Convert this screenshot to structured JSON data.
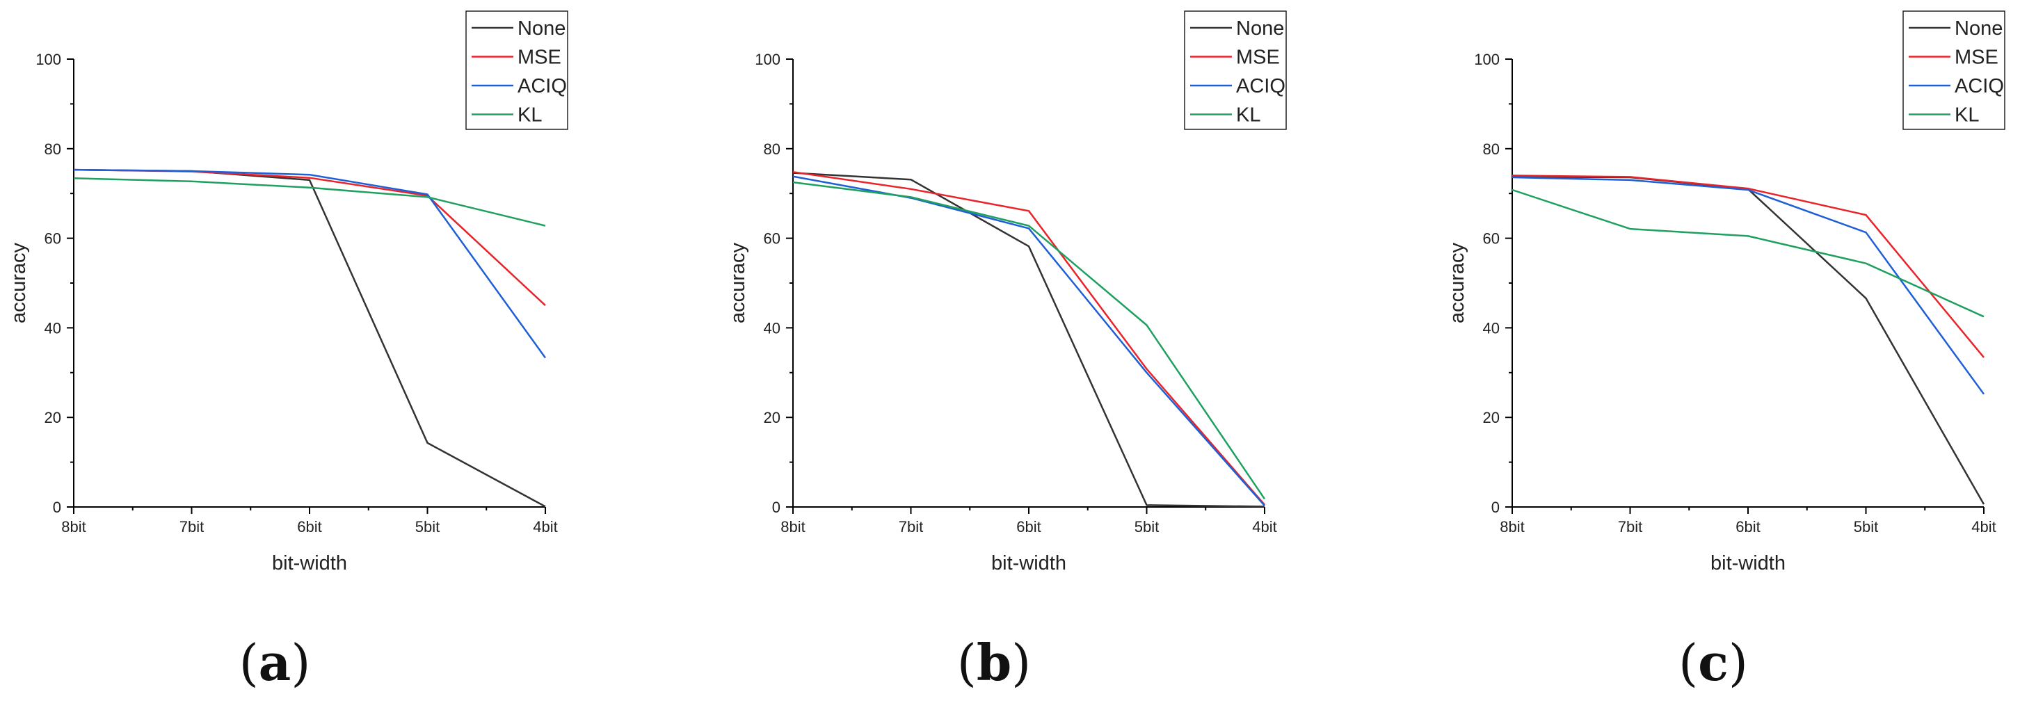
{
  "colors": {
    "None": "#333333",
    "MSE": "#e8242a",
    "ACIQ": "#1f5fd6",
    "KL": "#1fa060",
    "axis": "#000000"
  },
  "chart_data": [
    {
      "type": "line",
      "panel": {
        "open": "(",
        "letter": "a",
        "close": ")"
      },
      "categories": [
        "8bit",
        "7bit",
        "6bit",
        "5bit",
        "4bit"
      ],
      "xlabel": "bit-width",
      "ylabel": "accuracy",
      "ylim": [
        0,
        100
      ],
      "yticks": [
        "0",
        "20",
        "40",
        "60",
        "80",
        "100"
      ],
      "legend_position": "top-right",
      "series": [
        {
          "name": "None",
          "values": [
            75.3,
            75.0,
            73.0,
            14.3,
            0.1
          ]
        },
        {
          "name": "MSE",
          "values": [
            75.3,
            74.9,
            73.5,
            69.5,
            45.0
          ]
        },
        {
          "name": "ACIQ",
          "values": [
            75.3,
            75.0,
            74.2,
            69.8,
            33.3
          ]
        },
        {
          "name": "KL",
          "values": [
            73.4,
            72.7,
            71.3,
            69.2,
            62.8
          ]
        }
      ]
    },
    {
      "type": "line",
      "panel": {
        "open": "(",
        "letter": "b",
        "close": ")"
      },
      "categories": [
        "8bit",
        "7bit",
        "6bit",
        "5bit",
        "4bit"
      ],
      "xlabel": "bit-width",
      "ylabel": "accuracy",
      "ylim": [
        0,
        100
      ],
      "yticks": [
        "0",
        "20",
        "40",
        "60",
        "80",
        "100"
      ],
      "legend_position": "top-right",
      "series": [
        {
          "name": "None",
          "values": [
            74.6,
            73.1,
            58.2,
            0.4,
            0.1
          ]
        },
        {
          "name": "MSE",
          "values": [
            74.8,
            71.0,
            66.1,
            30.8,
            0.5
          ]
        },
        {
          "name": "ACIQ",
          "values": [
            73.8,
            69.0,
            62.2,
            30.0,
            0.3
          ]
        },
        {
          "name": "KL",
          "values": [
            72.5,
            69.2,
            62.8,
            40.6,
            1.8
          ]
        }
      ]
    },
    {
      "type": "line",
      "panel": {
        "open": "(",
        "letter": "c",
        "close": ")"
      },
      "categories": [
        "8bit",
        "7bit",
        "6bit",
        "5bit",
        "4bit"
      ],
      "xlabel": "bit-width",
      "ylabel": "accuracy",
      "ylim": [
        0,
        100
      ],
      "yticks": [
        "0",
        "20",
        "40",
        "60",
        "80",
        "100"
      ],
      "legend_position": "top-right",
      "series": [
        {
          "name": "None",
          "values": [
            73.7,
            73.6,
            71.0,
            46.6,
            0.6
          ]
        },
        {
          "name": "MSE",
          "values": [
            74.0,
            73.7,
            71.1,
            65.2,
            33.4
          ]
        },
        {
          "name": "ACIQ",
          "values": [
            73.6,
            73.0,
            70.8,
            61.3,
            25.2
          ]
        },
        {
          "name": "KL",
          "values": [
            70.8,
            62.1,
            60.5,
            54.4,
            42.5
          ]
        }
      ]
    }
  ]
}
